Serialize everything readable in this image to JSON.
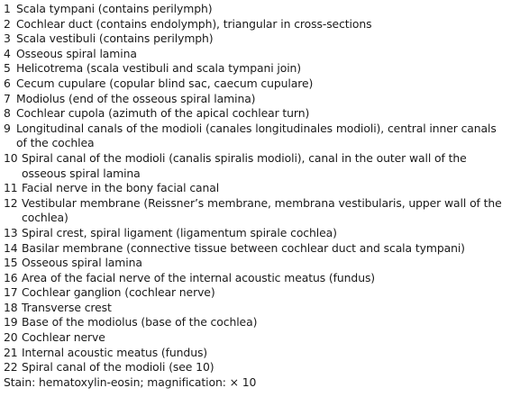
{
  "legend": {
    "items": [
      {
        "num": "1",
        "text": "Scala tympani (contains perilymph)"
      },
      {
        "num": "2",
        "text": "Cochlear duct (contains endolymph), triangular in cross-sections"
      },
      {
        "num": "3",
        "text": "Scala vestibuli (contains perilymph)"
      },
      {
        "num": "4",
        "text": "Osseous spiral lamina"
      },
      {
        "num": "5",
        "text": "Helicotrema (scala vestibuli and scala tympani join)"
      },
      {
        "num": "6",
        "text": "Cecum cupulare (copular blind sac, caecum cupulare)"
      },
      {
        "num": "7",
        "text": "Modiolus (end of the osseous spiral lamina)"
      },
      {
        "num": "8",
        "text": "Cochlear cupola (azimuth of the apical cochlear turn)"
      },
      {
        "num": "9",
        "text": "Longitudinal canals of the modioli (canales longitudinales modioli), central inner canals of the cochlea"
      },
      {
        "num": "10",
        "text": "Spiral canal of the modioli (canalis spiralis modioli), canal in the outer wall of the osseous spiral lamina"
      },
      {
        "num": "11",
        "text": "Facial nerve in the bony facial canal"
      },
      {
        "num": "12",
        "text": "Vestibular membrane (Reissner’s membrane, membrana vestibularis, upper wall of the cochlea)"
      },
      {
        "num": "13",
        "text": "Spiral crest, spiral ligament (ligamentum spirale cochlea)"
      },
      {
        "num": "14",
        "text": "Basilar membrane (connective tissue between cochlear duct and scala tympani)"
      },
      {
        "num": "15",
        "text": "Osseous spiral lamina"
      },
      {
        "num": "16",
        "text": "Area of the facial nerve of the internal acoustic meatus (fundus)"
      },
      {
        "num": "17",
        "text": "Cochlear ganglion (cochlear nerve)"
      },
      {
        "num": "18",
        "text": "Transverse crest"
      },
      {
        "num": "19",
        "text": "Base of the modiolus (base of the cochlea)"
      },
      {
        "num": "20",
        "text": "Cochlear nerve"
      },
      {
        "num": "21",
        "text": "Internal acoustic meatus (fundus)"
      },
      {
        "num": "22",
        "text": "Spiral canal of the modioli (see 10)"
      }
    ],
    "stain": "Stain: hematoxylin-eosin; magnification: × 10"
  }
}
